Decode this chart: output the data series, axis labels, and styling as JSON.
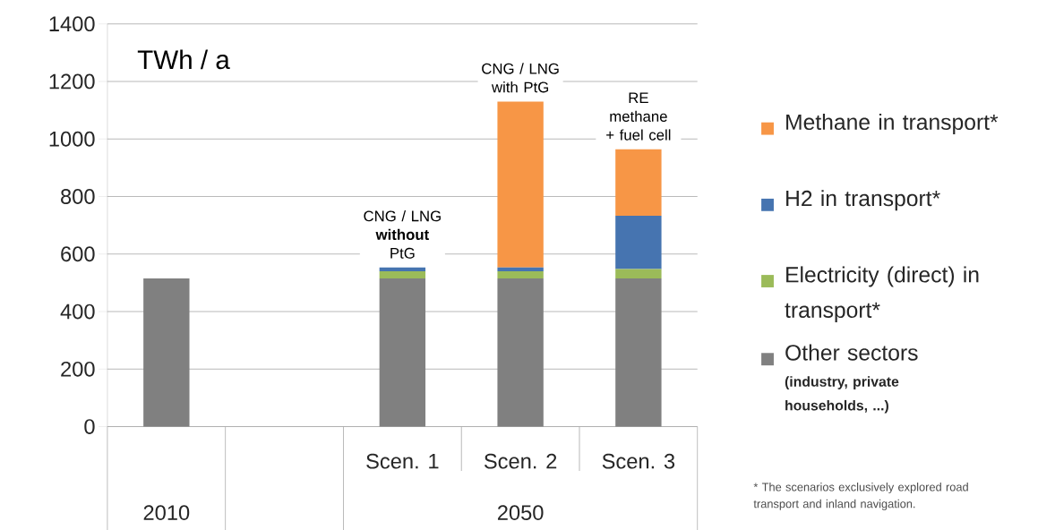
{
  "chart_data": {
    "type": "bar",
    "stacked": true,
    "ylabel": "TWh / a",
    "categories": [
      null,
      null,
      "Scen. 1",
      "Scen. 2",
      "Scen. 3"
    ],
    "series": [
      {
        "name": "Other sectors",
        "color": "#808080",
        "values": [
          515,
          null,
          515,
          515,
          515
        ]
      },
      {
        "name": "Electricity (direct) in transport*",
        "color": "#9bbb59",
        "values": [
          null,
          null,
          25,
          25,
          33
        ]
      },
      {
        "name": "H2 in transport*",
        "color": "#4674b0",
        "values": [
          null,
          null,
          13,
          13,
          185
        ]
      },
      {
        "name": "Methane in transport*",
        "color": "#f79646",
        "values": [
          null,
          null,
          null,
          577,
          231
        ]
      }
    ],
    "ylim": [
      0,
      1400
    ],
    "yticks": [
      0,
      200,
      400,
      600,
      800,
      1000,
      1200,
      1400
    ],
    "grid": "y",
    "legend": "right",
    "annotations": [
      {
        "text": "CNG / LNG **without** PtG",
        "x": "Scen. 1",
        "y": 553
      },
      {
        "text": "CNG / LNG with PtG",
        "x": "Scen. 2",
        "y": 1130
      },
      {
        "text": "RE methane + fuel cell",
        "x": "Scen. 3",
        "y": 964
      },
      "2010",
      "2050",
      "(industry, private households, ...)",
      "* The scenarios exclusively explored road transport and inland navigation."
    ]
  }
}
